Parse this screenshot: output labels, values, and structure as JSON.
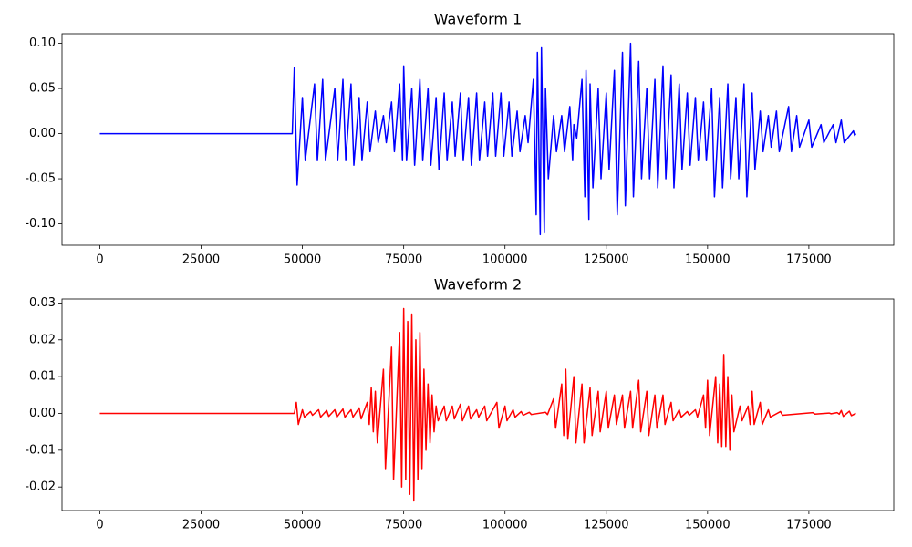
{
  "chart_data": [
    {
      "type": "line",
      "title": "Waveform 1",
      "color": "#0000ff",
      "xlim": [
        -9331,
        195955
      ],
      "ylim": [
        -0.1237,
        0.1107
      ],
      "xticks": [
        0,
        25000,
        50000,
        75000,
        100000,
        125000,
        150000,
        175000
      ],
      "yticks": [
        {
          "value": 0.1,
          "label": "0.10"
        },
        0.05,
        {
          "value": 0,
          "label": "0.00"
        },
        -0.05,
        {
          "value": -0.1,
          "label": "-0.10"
        }
      ],
      "x": [
        0,
        47500,
        48000,
        48700,
        50000,
        50700,
        53000,
        53700,
        55000,
        55700,
        58000,
        58700,
        60000,
        60700,
        62000,
        62700,
        64000,
        64700,
        66000,
        66700,
        68000,
        68700,
        70000,
        70700,
        72000,
        72700,
        74000,
        74700,
        75000,
        75700,
        77000,
        77700,
        79000,
        79700,
        81000,
        81700,
        83000,
        83700,
        85000,
        85700,
        87000,
        87700,
        89000,
        89700,
        91000,
        91700,
        93000,
        93700,
        95000,
        95700,
        97000,
        97700,
        99000,
        99700,
        101000,
        101700,
        103000,
        103700,
        105000,
        105700,
        107000,
        107700,
        108000,
        108700,
        109000,
        109700,
        110000,
        110700,
        112000,
        112700,
        114000,
        114700,
        116000,
        116700,
        117000,
        117700,
        119000,
        119700,
        120000,
        120700,
        121000,
        121700,
        123000,
        123700,
        125000,
        125700,
        127000,
        127700,
        129000,
        129700,
        131000,
        131700,
        133000,
        133700,
        135000,
        135700,
        137000,
        137700,
        139000,
        139700,
        141000,
        141700,
        143000,
        143700,
        145000,
        145700,
        147000,
        147700,
        149000,
        149700,
        151000,
        151700,
        153000,
        153700,
        155000,
        155700,
        157000,
        157700,
        159000,
        159700,
        161000,
        161700,
        163000,
        163700,
        165000,
        165700,
        167000,
        167700,
        170000,
        170700,
        172000,
        172700,
        175000,
        175700,
        178000,
        178700,
        181000,
        181700,
        183000,
        183700,
        186000,
        186300,
        186600
      ],
      "values": [
        0,
        0,
        0.073,
        -0.057,
        0.04,
        -0.03,
        0.055,
        -0.03,
        0.06,
        -0.03,
        0.05,
        -0.03,
        0.06,
        -0.03,
        0.055,
        -0.035,
        0.04,
        -0.03,
        0.035,
        -0.02,
        0.025,
        -0.01,
        0.02,
        -0.01,
        0.035,
        -0.02,
        0.055,
        -0.03,
        0.075,
        -0.03,
        0.05,
        -0.035,
        0.06,
        -0.03,
        0.05,
        -0.035,
        0.04,
        -0.04,
        0.045,
        -0.03,
        0.035,
        -0.025,
        0.045,
        -0.03,
        0.04,
        -0.035,
        0.045,
        -0.03,
        0.035,
        -0.025,
        0.045,
        -0.025,
        0.045,
        -0.025,
        0.035,
        -0.025,
        0.025,
        -0.02,
        0.02,
        -0.01,
        0.06,
        -0.09,
        0.09,
        -0.112,
        0.095,
        -0.11,
        0.05,
        -0.05,
        0.02,
        -0.02,
        0.02,
        -0.02,
        0.03,
        -0.03,
        0.01,
        -0.005,
        0.06,
        -0.07,
        0.07,
        -0.095,
        0.055,
        -0.06,
        0.05,
        -0.05,
        0.045,
        -0.04,
        0.07,
        -0.09,
        0.09,
        -0.08,
        0.1,
        -0.07,
        0.08,
        -0.05,
        0.05,
        -0.05,
        0.06,
        -0.06,
        0.075,
        -0.05,
        0.065,
        -0.06,
        0.055,
        -0.04,
        0.045,
        -0.035,
        0.04,
        -0.03,
        0.035,
        -0.03,
        0.05,
        -0.07,
        0.04,
        -0.06,
        0.055,
        -0.05,
        0.04,
        -0.05,
        0.055,
        -0.07,
        0.045,
        -0.04,
        0.025,
        -0.02,
        0.02,
        -0.015,
        0.025,
        -0.02,
        0.03,
        -0.02,
        0.02,
        -0.015,
        0.015,
        -0.015,
        0.01,
        -0.01,
        0.01,
        -0.01,
        0.015,
        -0.01,
        0.003,
        -0.002,
        0
      ]
    },
    {
      "type": "line",
      "title": "Waveform 2",
      "color": "#ff0000",
      "xlim": [
        -9331,
        195955
      ],
      "ylim": [
        -0.0264,
        0.0311
      ],
      "xticks": [
        0,
        25000,
        50000,
        75000,
        100000,
        125000,
        150000,
        175000
      ],
      "yticks": [
        0.03,
        0.02,
        0.01,
        {
          "value": 0,
          "label": "0.00"
        },
        -0.01,
        -0.02
      ],
      "x": [
        0,
        48000,
        48500,
        49000,
        50000,
        50500,
        52000,
        52500,
        54000,
        54500,
        56000,
        56500,
        58000,
        58500,
        60000,
        60500,
        62000,
        62500,
        64000,
        64500,
        66000,
        66500,
        67000,
        67500,
        68000,
        68500,
        70000,
        70500,
        72000,
        72500,
        74000,
        74500,
        75000,
        75500,
        76000,
        76500,
        77000,
        77500,
        78000,
        78500,
        79000,
        79500,
        80000,
        80500,
        81000,
        81500,
        82000,
        82500,
        83000,
        83500,
        85000,
        85500,
        87000,
        87500,
        89000,
        89500,
        91000,
        91500,
        93000,
        93500,
        95000,
        95500,
        98000,
        98500,
        100000,
        100500,
        102000,
        102500,
        104000,
        104500,
        106000,
        106500,
        110000,
        110500,
        112000,
        112500,
        114000,
        114500,
        115000,
        115500,
        117000,
        117500,
        119000,
        119500,
        121000,
        121500,
        123000,
        123500,
        125000,
        125500,
        127000,
        127500,
        129000,
        129500,
        131000,
        131500,
        133000,
        133500,
        135000,
        135500,
        137000,
        137500,
        139000,
        139500,
        141000,
        141500,
        143000,
        143500,
        145000,
        145500,
        147000,
        147500,
        149000,
        149500,
        150000,
        150500,
        152000,
        152500,
        153000,
        153500,
        154000,
        154500,
        155000,
        155500,
        156000,
        156500,
        158000,
        158500,
        160000,
        160500,
        161000,
        161500,
        163000,
        163500,
        165000,
        165500,
        168000,
        168500,
        176000,
        176500,
        180000,
        180500,
        182000,
        182500,
        183000,
        183500,
        185000,
        185500,
        186600
      ],
      "values": [
        0,
        0,
        0.003,
        -0.003,
        0.001,
        -0.001,
        0.0005,
        -0.0005,
        0.001,
        -0.001,
        0.0008,
        -0.0008,
        0.001,
        -0.001,
        0.0012,
        -0.001,
        0.001,
        -0.001,
        0.0015,
        -0.0015,
        0.003,
        -0.003,
        0.007,
        -0.005,
        0.006,
        -0.008,
        0.012,
        -0.015,
        0.018,
        -0.018,
        0.022,
        -0.02,
        0.0285,
        -0.018,
        0.025,
        -0.022,
        0.027,
        -0.0238,
        0.02,
        -0.018,
        0.022,
        -0.015,
        0.012,
        -0.01,
        0.008,
        -0.008,
        0.005,
        -0.005,
        0.002,
        -0.002,
        0.002,
        -0.002,
        0.002,
        -0.0015,
        0.0025,
        -0.002,
        0.002,
        -0.0015,
        0.001,
        -0.001,
        0.002,
        -0.002,
        0.003,
        -0.004,
        0.002,
        -0.002,
        0.001,
        -0.001,
        0.0005,
        -0.0005,
        0.0003,
        -0.0003,
        0.0003,
        -0.0003,
        0.004,
        -0.004,
        0.008,
        -0.006,
        0.012,
        -0.007,
        0.01,
        -0.008,
        0.008,
        -0.008,
        0.007,
        -0.006,
        0.006,
        -0.005,
        0.006,
        -0.004,
        0.005,
        -0.003,
        0.005,
        -0.004,
        0.006,
        -0.004,
        0.009,
        -0.005,
        0.006,
        -0.006,
        0.005,
        -0.004,
        0.005,
        -0.003,
        0.003,
        -0.002,
        0.001,
        -0.001,
        0.0005,
        -0.0005,
        0.001,
        -0.001,
        0.005,
        -0.004,
        0.009,
        -0.006,
        0.01,
        -0.008,
        0.008,
        -0.009,
        0.016,
        -0.009,
        0.01,
        -0.01,
        0.005,
        -0.005,
        0.002,
        -0.002,
        0.002,
        -0.003,
        0.006,
        -0.003,
        0.003,
        -0.003,
        0.001,
        -0.001,
        0.0005,
        -0.0005,
        0.0002,
        -0.0002,
        0.0001,
        -0.0001,
        0.0002,
        -0.0002,
        0.0008,
        -0.0008,
        0.0006,
        -0.0006,
        0
      ]
    }
  ]
}
